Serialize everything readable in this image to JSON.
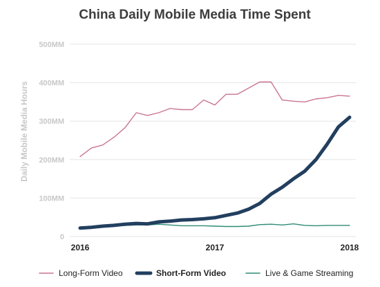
{
  "chart_data": {
    "type": "line",
    "title": "China Daily Mobile Media Time Spent",
    "ylabel": "Daily Mobile Media Hours",
    "xlabel": "",
    "ylim": [
      0,
      500
    ],
    "y_ticks": [
      0,
      100,
      200,
      300,
      400,
      500
    ],
    "y_tick_labels": [
      "0",
      "100MM",
      "200MM",
      "300MM",
      "400MM",
      "500MM"
    ],
    "x_ticks": [
      2016,
      2017,
      2018
    ],
    "x_tick_labels": [
      "2016",
      "2017",
      "2018"
    ],
    "xlim": [
      2016,
      2018
    ],
    "grid": "horizontal",
    "legend_position": "bottom",
    "series": [
      {
        "name": "Long-Form Video",
        "color": "#c9758f",
        "style": "thin",
        "x": [
          2016.0,
          2016.083,
          2016.167,
          2016.25,
          2016.333,
          2016.417,
          2016.5,
          2016.583,
          2016.667,
          2016.75,
          2016.833,
          2016.917,
          2017.0,
          2017.083,
          2017.167,
          2017.25,
          2017.333,
          2017.417,
          2017.5,
          2017.583,
          2017.667,
          2017.75,
          2017.833,
          2017.917,
          2018.0
        ],
        "values": [
          208,
          230,
          238,
          258,
          283,
          322,
          315,
          322,
          333,
          330,
          330,
          355,
          342,
          370,
          370,
          386,
          402,
          402,
          355,
          352,
          350,
          358,
          361,
          367,
          365
        ]
      },
      {
        "name": "Short-Form Video",
        "color": "#223f5f",
        "style": "thick",
        "x": [
          2016.0,
          2016.083,
          2016.167,
          2016.25,
          2016.333,
          2016.417,
          2016.5,
          2016.583,
          2016.667,
          2016.75,
          2016.833,
          2016.917,
          2017.0,
          2017.083,
          2017.167,
          2017.25,
          2017.333,
          2017.417,
          2017.5,
          2017.583,
          2017.667,
          2017.75,
          2017.833,
          2017.917,
          2018.0
        ],
        "values": [
          22,
          24,
          27,
          29,
          32,
          34,
          33,
          38,
          40,
          43,
          44,
          46,
          49,
          55,
          61,
          71,
          86,
          110,
          128,
          150,
          170,
          200,
          240,
          285,
          310
        ]
      },
      {
        "name": "Live & Game Streaming",
        "color": "#2e8a76",
        "style": "thin",
        "x": [
          2016.0,
          2016.083,
          2016.167,
          2016.25,
          2016.333,
          2016.417,
          2016.5,
          2016.583,
          2016.667,
          2016.75,
          2016.833,
          2016.917,
          2017.0,
          2017.083,
          2017.167,
          2017.25,
          2017.333,
          2017.417,
          2017.5,
          2017.583,
          2017.667,
          2017.75,
          2017.833,
          2017.917,
          2018.0
        ],
        "values": [
          20,
          22,
          25,
          27,
          29,
          30,
          30,
          32,
          30,
          28,
          28,
          28,
          27,
          26,
          26,
          27,
          31,
          32,
          30,
          33,
          29,
          28,
          29,
          29,
          29
        ]
      }
    ],
    "colors": {
      "title": "#3d3d3d",
      "axis_text": "#c8c8c8",
      "x_tick_text": "#222222",
      "legend_text": "#222222",
      "grid": "#e6e6e6"
    }
  }
}
